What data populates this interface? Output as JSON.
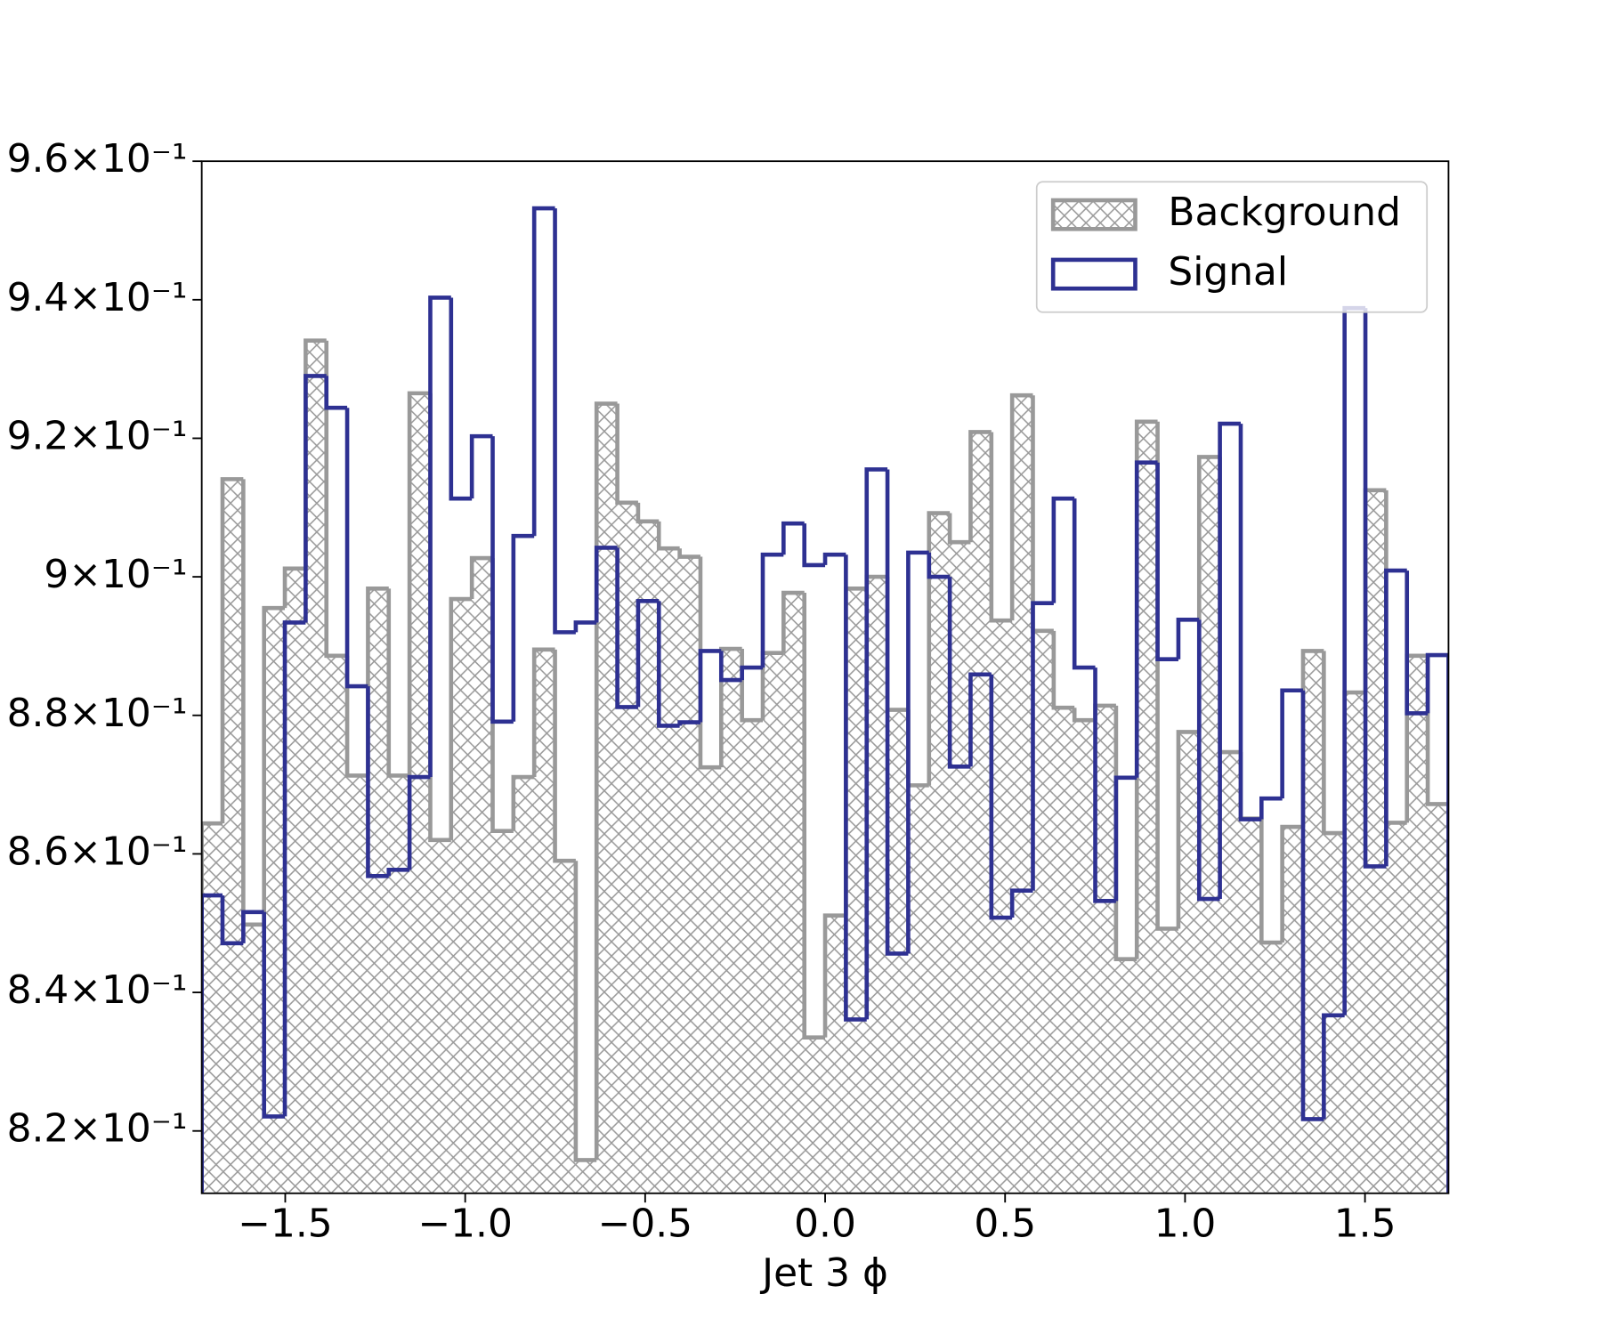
{
  "chart_data": {
    "type": "histogram",
    "xlabel": "Jet 3 ϕ",
    "bins": [
      -1.732,
      -1.6743,
      -1.6165,
      -1.5588,
      -1.5011,
      -1.4433,
      -1.3856,
      -1.3279,
      -1.2701,
      -1.2124,
      -1.1547,
      -1.0969,
      -1.0392,
      -0.9815,
      -0.9237,
      -0.866,
      -0.8083,
      -0.7505,
      -0.6928,
      -0.6351,
      -0.5773,
      -0.5196,
      -0.4619,
      -0.4041,
      -0.3464,
      -0.2887,
      -0.2309,
      -0.1732,
      -0.1155,
      -0.0577,
      0,
      0.0577,
      0.1155,
      0.1732,
      0.2309,
      0.2887,
      0.3464,
      0.4041,
      0.4619,
      0.5196,
      0.5773,
      0.6351,
      0.6928,
      0.7505,
      0.8083,
      0.866,
      0.9237,
      0.9815,
      1.0392,
      1.0969,
      1.1547,
      1.2124,
      1.2701,
      1.3279,
      1.3856,
      1.4433,
      1.5011,
      1.5588,
      1.6165,
      1.6743,
      1.732
    ],
    "series": [
      {
        "name": "Background",
        "color": "#999999",
        "hatch": true,
        "values": [
          0.8644,
          0.9141,
          0.8498,
          0.8955,
          0.9012,
          0.9341,
          0.8886,
          0.8713,
          0.8983,
          0.8713,
          0.9265,
          0.862,
          0.8968,
          0.9027,
          0.8633,
          0.8711,
          0.8895,
          0.859,
          0.8158,
          0.925,
          0.9107,
          0.908,
          0.9041,
          0.9029,
          0.8725,
          0.8896,
          0.8793,
          0.889,
          0.8977,
          0.8335,
          0.8511,
          0.8983,
          0.9,
          0.8808,
          0.8699,
          0.9092,
          0.905,
          0.9209,
          0.8937,
          0.9262,
          0.8922,
          0.8811,
          0.8793,
          0.8814,
          0.8448,
          0.9224,
          0.8492,
          0.8776,
          0.9173,
          0.8747,
          0.8651,
          0.8472,
          0.8639,
          0.8893,
          0.863,
          0.8833,
          0.9125,
          0.8645,
          0.8886,
          0.8672
        ]
      },
      {
        "name": "Signal",
        "color": "#2e3192",
        "hatch": false,
        "values": [
          0.854,
          0.8471,
          0.8516,
          0.8221,
          0.8934,
          0.929,
          0.9244,
          0.8842,
          0.8568,
          0.8577,
          0.8711,
          0.9403,
          0.9113,
          0.9203,
          0.8791,
          0.9059,
          0.9532,
          0.892,
          0.8934,
          0.9042,
          0.8812,
          0.8965,
          0.8785,
          0.879,
          0.8893,
          0.8851,
          0.8869,
          0.9032,
          0.9077,
          0.9017,
          0.9032,
          0.8361,
          0.9155,
          0.8456,
          0.9035,
          0.9,
          0.8726,
          0.8859,
          0.8508,
          0.8547,
          0.8962,
          0.9113,
          0.8869,
          0.8532,
          0.871,
          0.9165,
          0.8881,
          0.8938,
          0.8535,
          0.9221,
          0.865,
          0.868,
          0.8836,
          0.8217,
          0.8367,
          0.9388,
          0.8582,
          0.9009,
          0.8803,
          0.8887
        ]
      }
    ],
    "xlim": [
      -1.732,
      1.732
    ],
    "ylim": [
      0.811,
      0.96
    ],
    "xticks": [
      {
        "value": -1.5,
        "label": "−1.5"
      },
      {
        "value": -1.0,
        "label": "−1.0"
      },
      {
        "value": -0.5,
        "label": "−0.5"
      },
      {
        "value": 0,
        "label": "0.0"
      },
      0.5,
      {
        "value": 1.0,
        "label": "1.0"
      },
      1.5
    ],
    "yticks": [
      {
        "value": 0.82,
        "label": "8.2×10⁻¹"
      },
      {
        "value": 0.84,
        "label": "8.4×10⁻¹"
      },
      {
        "value": 0.86,
        "label": "8.6×10⁻¹"
      },
      {
        "value": 0.88,
        "label": "8.8×10⁻¹"
      },
      {
        "value": 0.9,
        "label": "9×10⁻¹"
      },
      {
        "value": 0.92,
        "label": "9.2×10⁻¹"
      },
      {
        "value": 0.94,
        "label": "9.4×10⁻¹"
      },
      {
        "value": 0.96,
        "label": "9.6×10⁻¹"
      }
    ],
    "legend": "upper right"
  }
}
